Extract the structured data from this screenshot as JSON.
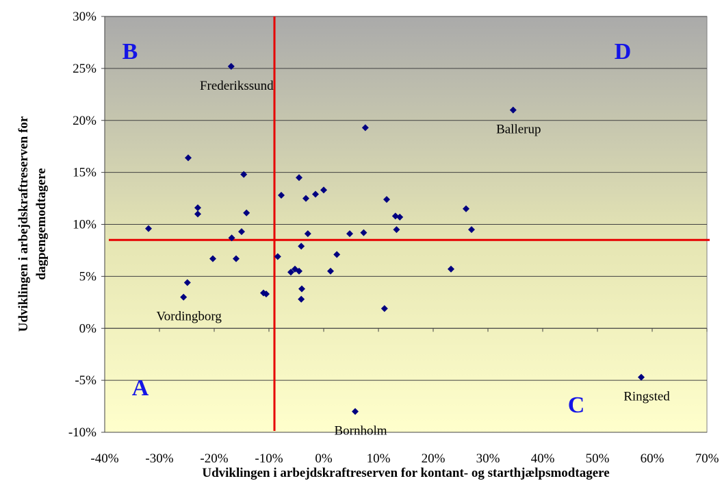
{
  "chart_data": {
    "type": "scatter",
    "x_label": "Udviklingen i arbejdskraftreserven for kontant- og starthjælpsmodtagere",
    "y_label": [
      "Udviklingen i arbejdskraftreserven for",
      "dagpengemodtagere"
    ],
    "color": "#000080",
    "x": [
      -16.9,
      34.6,
      7.6,
      -24.75,
      -14.6,
      -4.5,
      0.0,
      -1.5,
      -3.25,
      -7.75,
      11.5,
      -23,
      -23,
      -14.1,
      26,
      -32,
      -16.8,
      -15,
      13.1,
      13.9,
      13.3,
      27,
      -2.9,
      4.75,
      7.3,
      -4.1,
      -20.25,
      -16,
      -8.4,
      2.4,
      -6,
      -5.25,
      -4.5,
      1.25,
      23.25,
      -24.9,
      -4,
      -11,
      -10.5,
      -4.1,
      -25.6,
      11.1,
      58,
      5.75
    ],
    "values": [
      25.2,
      21.0,
      19.3,
      16.4,
      14.8,
      14.5,
      13.3,
      12.9,
      12.5,
      12.8,
      12.4,
      11.6,
      11.0,
      11.1,
      11.5,
      9.6,
      8.7,
      9.3,
      10.8,
      10.7,
      9.5,
      9.5,
      9.1,
      9.1,
      9.2,
      7.9,
      6.7,
      6.7,
      6.9,
      7.1,
      5.4,
      5.7,
      5.5,
      5.5,
      5.7,
      4.4,
      3.8,
      3.4,
      3.3,
      2.8,
      3.0,
      1.9,
      -4.7,
      -8.0
    ],
    "point_labels": [
      "Frederikssund",
      "Ballerup",
      null,
      null,
      null,
      null,
      null,
      null,
      null,
      null,
      null,
      null,
      null,
      null,
      null,
      null,
      null,
      null,
      null,
      null,
      null,
      null,
      null,
      null,
      null,
      null,
      null,
      null,
      null,
      null,
      null,
      null,
      null,
      null,
      null,
      null,
      null,
      null,
      null,
      null,
      "Vordingborg",
      null,
      "Ringsted",
      "Bornholm"
    ],
    "quadrants": [
      "B",
      "D",
      "A",
      "C"
    ],
    "vline": -9,
    "hline": 8.5,
    "xlim": [
      -40,
      70
    ],
    "ylim": [
      -10,
      30
    ],
    "xticks": [
      {
        "value": -40,
        "label": "-40%"
      },
      {
        "value": -30,
        "label": "-30%"
      },
      {
        "value": -20,
        "label": "-20%"
      },
      {
        "value": -10,
        "label": "-10%"
      },
      {
        "value": 0,
        "label": "0%"
      },
      {
        "value": 10,
        "label": "10%"
      },
      {
        "value": 20,
        "label": "20%"
      },
      {
        "value": 30,
        "label": "30%"
      },
      {
        "value": 40,
        "label": "40%"
      },
      {
        "value": 50,
        "label": "50%"
      },
      {
        "value": 60,
        "label": "60%"
      },
      {
        "value": 70,
        "label": "70%"
      }
    ],
    "yticks": [
      {
        "value": -10,
        "label": "-10%"
      },
      {
        "value": -5,
        "label": "-5%"
      },
      {
        "value": 0,
        "label": "0%"
      },
      {
        "value": 5,
        "label": "5%"
      },
      {
        "value": 10,
        "label": "10%"
      },
      {
        "value": 15,
        "label": "15%"
      },
      {
        "value": 20,
        "label": "20%"
      },
      {
        "value": 25,
        "label": "25%"
      },
      {
        "value": 30,
        "label": "30%"
      }
    ],
    "grid": true
  }
}
